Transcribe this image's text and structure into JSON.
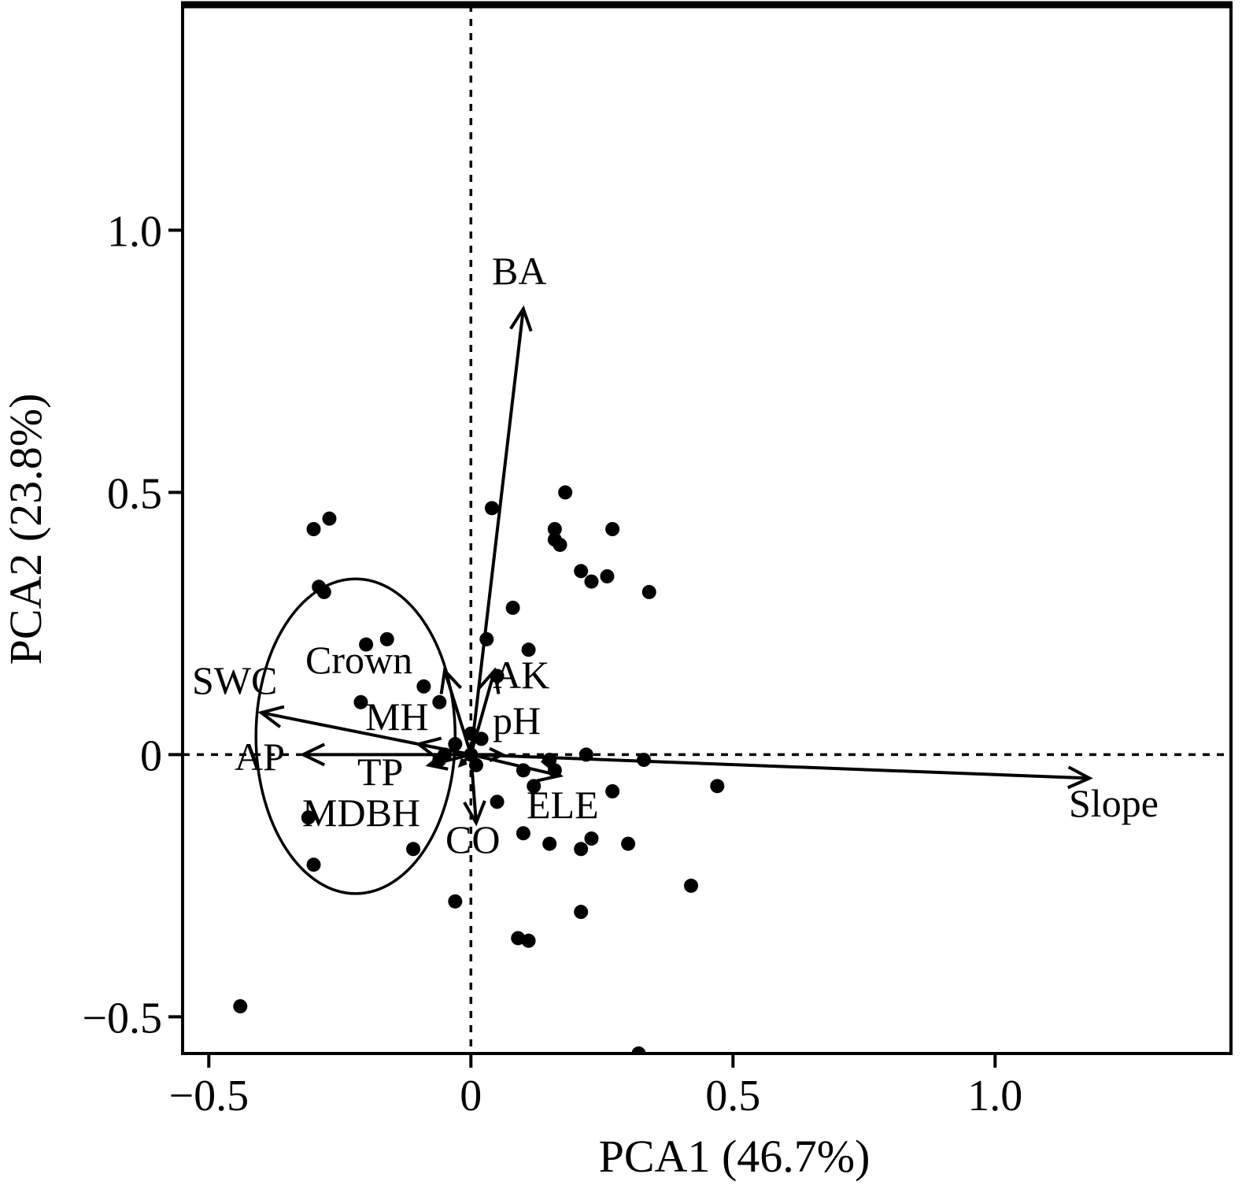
{
  "chart_data": {
    "type": "scatter",
    "title": "",
    "xlabel": "PCA1 (46.7%)",
    "ylabel": "PCA2 (23.8%)",
    "xlim": [
      -0.55,
      1.45
    ],
    "ylim": [
      -0.57,
      1.43
    ],
    "x_ticks": [
      -0.5,
      0,
      0.5,
      1.0
    ],
    "x_tick_labels": [
      "−0.5",
      "0",
      "0.5",
      "1.0"
    ],
    "y_ticks": [
      -0.5,
      0,
      0.5,
      1.0
    ],
    "y_tick_labels": [
      "−0.5",
      "0",
      "0.5",
      "1.0"
    ],
    "grid": false,
    "reference_lines": [
      "x = 0 (dotted)",
      "y = 0 (dotted)"
    ],
    "ellipse": {
      "cx": -0.22,
      "cy": 0.035,
      "rx": 0.19,
      "ry": 0.3
    },
    "vectors": [
      {
        "name": "BA",
        "x": 0.1,
        "y": 0.85
      },
      {
        "name": "SWC",
        "x": -0.4,
        "y": 0.08
      },
      {
        "name": "AP",
        "x": -0.32,
        "y": 0.0
      },
      {
        "name": "Slope",
        "x": 1.18,
        "y": -0.045
      },
      {
        "name": "Crown",
        "x": -0.05,
        "y": 0.16
      },
      {
        "name": "MH",
        "x": -0.1,
        "y": 0.02
      },
      {
        "name": "TP",
        "x": -0.08,
        "y": -0.02
      },
      {
        "name": "MDBH",
        "x": -0.02,
        "y": -0.02
      },
      {
        "name": "AK",
        "x": 0.045,
        "y": 0.16
      },
      {
        "name": "pH",
        "x": 0.06,
        "y": 0.0
      },
      {
        "name": "ELE",
        "x": 0.17,
        "y": -0.04
      },
      {
        "name": "CO",
        "x": 0.01,
        "y": -0.13
      }
    ],
    "points": [
      [
        0.04,
        0.47
      ],
      [
        0.18,
        0.5
      ],
      [
        -0.3,
        0.43
      ],
      [
        -0.27,
        0.45
      ],
      [
        0.16,
        0.43
      ],
      [
        0.16,
        0.41
      ],
      [
        0.17,
        0.4
      ],
      [
        0.27,
        0.43
      ],
      [
        0.21,
        0.35
      ],
      [
        0.23,
        0.33
      ],
      [
        0.26,
        0.34
      ],
      [
        0.34,
        0.31
      ],
      [
        -0.29,
        0.32
      ],
      [
        -0.28,
        0.31
      ],
      [
        0.08,
        0.28
      ],
      [
        -0.2,
        0.21
      ],
      [
        -0.16,
        0.22
      ],
      [
        0.03,
        0.22
      ],
      [
        0.11,
        0.2
      ],
      [
        -0.09,
        0.13
      ],
      [
        0.05,
        0.15
      ],
      [
        -0.21,
        0.1
      ],
      [
        -0.06,
        0.1
      ],
      [
        0.0,
        0.04
      ],
      [
        -0.03,
        0.02
      ],
      [
        0.02,
        0.03
      ],
      [
        -0.05,
        0.0
      ],
      [
        0.0,
        0.0
      ],
      [
        0.15,
        -0.01
      ],
      [
        0.22,
        0.0
      ],
      [
        0.33,
        -0.01
      ],
      [
        -0.06,
        -0.01
      ],
      [
        0.01,
        -0.02
      ],
      [
        0.1,
        -0.03
      ],
      [
        0.16,
        -0.03
      ],
      [
        0.12,
        -0.06
      ],
      [
        0.47,
        -0.06
      ],
      [
        0.27,
        -0.07
      ],
      [
        0.05,
        -0.09
      ],
      [
        -0.31,
        -0.12
      ],
      [
        0.1,
        -0.15
      ],
      [
        0.15,
        -0.17
      ],
      [
        0.23,
        -0.16
      ],
      [
        0.21,
        -0.18
      ],
      [
        0.3,
        -0.17
      ],
      [
        -0.11,
        -0.18
      ],
      [
        -0.3,
        -0.21
      ],
      [
        0.42,
        -0.25
      ],
      [
        -0.03,
        -0.28
      ],
      [
        0.21,
        -0.3
      ],
      [
        0.09,
        -0.35
      ],
      [
        0.11,
        -0.355
      ],
      [
        -0.44,
        -0.48
      ],
      [
        0.32,
        -0.57
      ]
    ]
  }
}
